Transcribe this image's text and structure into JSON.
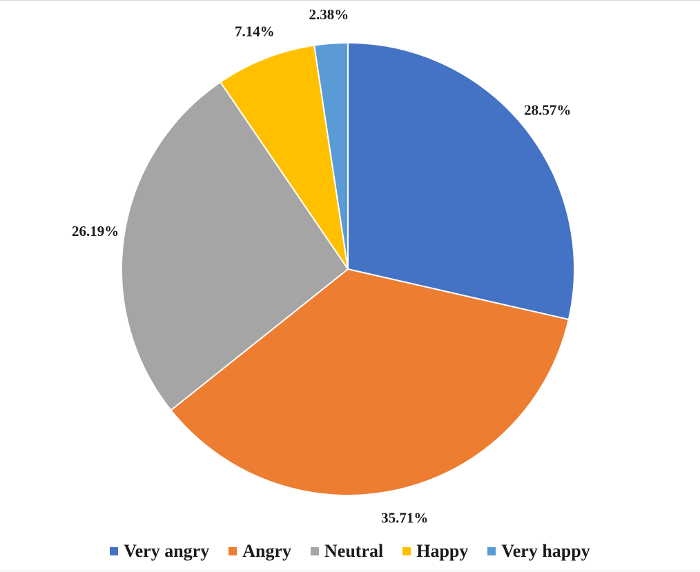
{
  "chart_data": {
    "type": "pie",
    "title": "",
    "categories": [
      "Very angry",
      "Angry",
      "Neutral",
      "Happy",
      "Very happy"
    ],
    "values": [
      28.57,
      35.71,
      26.19,
      7.14,
      2.38
    ],
    "labels": [
      "28.57%",
      "35.71%",
      "26.19%",
      "7.14%",
      "2.38%"
    ],
    "colors": [
      "#4472C4",
      "#ED7D31",
      "#A5A5A5",
      "#FFC000",
      "#5B9BD5"
    ],
    "start_angle": "12 o'clock",
    "direction": "clockwise",
    "legend_position": "bottom"
  }
}
